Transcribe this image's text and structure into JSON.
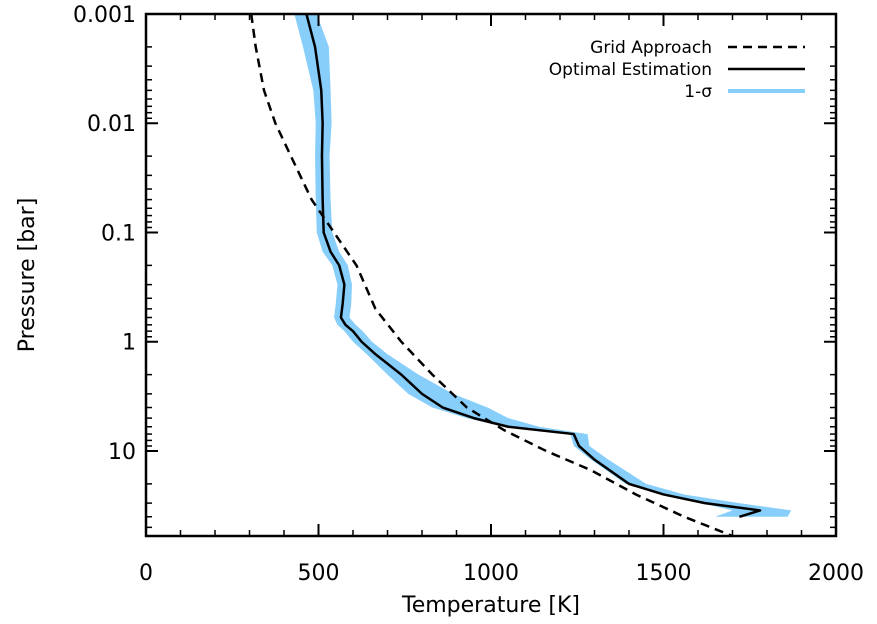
{
  "chart_data": {
    "type": "line",
    "xlabel": "Temperature [K]",
    "ylabel": "Pressure [bar]",
    "xlim": [
      0,
      2000
    ],
    "ylim_pressure_bar": [
      0.001,
      60
    ],
    "y_scale": "log",
    "y_inverted": true,
    "x_tick_labels": [
      "0",
      "500",
      "1000",
      "1500",
      "2000"
    ],
    "x_tick_values": [
      0,
      500,
      1000,
      1500,
      2000
    ],
    "y_tick_labels": [
      "0.001",
      "0.01",
      "0.1",
      "1",
      "10"
    ],
    "y_tick_values": [
      0.001,
      0.01,
      0.1,
      1,
      10
    ],
    "legend_position": "top-right",
    "colors": {
      "optimal": "#000000",
      "grid": "#000000",
      "sigma": "#87CEFA"
    },
    "series": [
      {
        "name": "Grid Approach",
        "style": "dashed",
        "x": [
          305,
          318,
          342,
          375,
          420,
          480,
          545,
          610,
          665,
          740,
          830,
          930,
          1040,
          1160,
          1290,
          1420,
          1560,
          1700
        ],
        "y": [
          0.001,
          0.002,
          0.005,
          0.01,
          0.02,
          0.05,
          0.1,
          0.2,
          0.5,
          1,
          2,
          4,
          6.5,
          10,
          15,
          25,
          40,
          60
        ]
      },
      {
        "name": "Optimal Estimation",
        "style": "solid",
        "x": [
          465,
          490,
          508,
          512,
          510,
          512,
          515,
          535,
          560,
          575,
          570,
          565,
          578,
          600,
          625,
          665,
          740,
          800,
          860,
          950,
          1050,
          1240,
          1255,
          1300,
          1400,
          1500,
          1620,
          1780,
          1720
        ],
        "y": [
          0.001,
          0.002,
          0.005,
          0.01,
          0.02,
          0.05,
          0.1,
          0.15,
          0.2,
          0.3,
          0.45,
          0.6,
          0.7,
          0.8,
          1.0,
          1.3,
          2.0,
          3.0,
          4.0,
          5.0,
          6.0,
          7.0,
          9.0,
          12,
          20,
          25,
          30,
          35,
          40
        ]
      },
      {
        "name": "1-σ",
        "style": "band",
        "x_low": [
          430,
          455,
          485,
          492,
          490,
          492,
          495,
          512,
          540,
          555,
          550,
          545,
          555,
          575,
          600,
          640,
          700,
          760,
          830,
          930,
          1040,
          1230,
          1240,
          1290,
          1390,
          1490,
          1610,
          1700,
          1650
        ],
        "x_high": [
          495,
          530,
          535,
          538,
          532,
          535,
          540,
          560,
          585,
          597,
          595,
          590,
          608,
          628,
          655,
          700,
          790,
          890,
          990,
          1050,
          1140,
          1280,
          1285,
          1340,
          1450,
          1560,
          1720,
          1870,
          1860
        ],
        "y": [
          0.001,
          0.002,
          0.005,
          0.01,
          0.02,
          0.05,
          0.1,
          0.15,
          0.2,
          0.3,
          0.45,
          0.6,
          0.7,
          0.8,
          1.0,
          1.3,
          2.0,
          3.0,
          4.0,
          5.0,
          6.0,
          7.0,
          9.0,
          12,
          20,
          25,
          30,
          35,
          40
        ]
      }
    ]
  }
}
